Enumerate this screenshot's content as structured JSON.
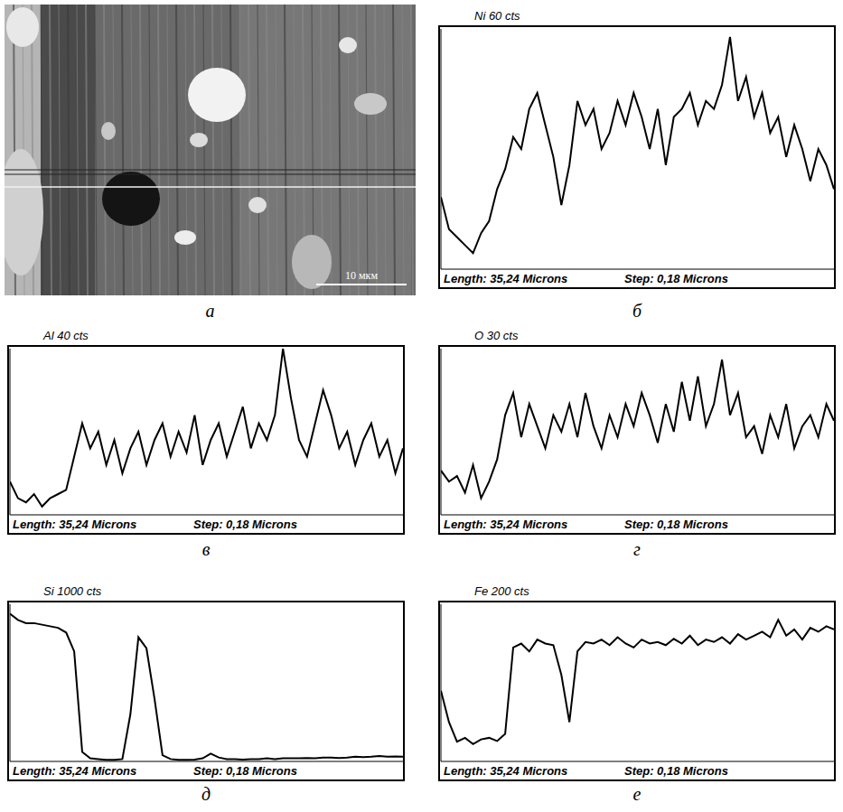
{
  "image": {
    "panel": "а",
    "scale_bar": "10 мкм"
  },
  "chart_data": [
    {
      "type": "line",
      "panel": "б",
      "title": "Ni 60 cts",
      "annotations": [
        "Length: 35,24 Microns",
        "Step: 0,18 Microns"
      ],
      "color": "#000000",
      "tick_labels": false,
      "xlim": [
        0,
        35.24
      ],
      "ylim": [
        0,
        60
      ],
      "x": [
        0,
        0.72,
        1.44,
        2.16,
        2.88,
        3.6,
        4.32,
        5.04,
        5.76,
        6.48,
        7.2,
        7.92,
        8.64,
        9.36,
        10.08,
        10.8,
        11.52,
        12.24,
        12.96,
        13.68,
        14.4,
        15.12,
        15.84,
        16.56,
        17.28,
        18,
        18.72,
        19.44,
        20.16,
        20.88,
        21.6,
        22.32,
        23.04,
        23.76,
        24.48,
        25.2,
        25.92,
        26.64,
        27.36,
        28.08,
        28.8,
        29.52,
        30.24,
        30.96,
        31.68,
        32.4,
        33.12,
        33.84,
        34.56,
        35.24
      ],
      "values": [
        18,
        10,
        8,
        6,
        4,
        9,
        12,
        20,
        25,
        33,
        30,
        40,
        44,
        36,
        28,
        16,
        26,
        42,
        36,
        40,
        30,
        34,
        42,
        36,
        44,
        38,
        30,
        40,
        26,
        38,
        40,
        44,
        36,
        42,
        40,
        46,
        58,
        42,
        48,
        38,
        44,
        34,
        38,
        28,
        36,
        30,
        22,
        30,
        26,
        20
      ]
    },
    {
      "type": "line",
      "panel": "в",
      "title": "Al 40 cts",
      "annotations": [
        "Length: 35,24 Microns",
        "Step: 0,18 Microns"
      ],
      "color": "#000000",
      "tick_labels": false,
      "xlim": [
        0,
        35.24
      ],
      "ylim": [
        0,
        40
      ],
      "x": [
        0,
        0.72,
        1.44,
        2.16,
        2.88,
        3.6,
        4.32,
        5.04,
        5.76,
        6.48,
        7.2,
        7.92,
        8.64,
        9.36,
        10.08,
        10.8,
        11.52,
        12.24,
        12.96,
        13.68,
        14.4,
        15.12,
        15.84,
        16.56,
        17.28,
        18,
        18.72,
        19.44,
        20.16,
        20.88,
        21.6,
        22.32,
        23.04,
        23.76,
        24.48,
        25.2,
        25.92,
        26.64,
        27.36,
        28.08,
        28.8,
        29.52,
        30.24,
        30.96,
        31.68,
        32.4,
        33.12,
        33.84,
        34.56,
        35.24
      ],
      "values": [
        8,
        4,
        3,
        5,
        2,
        4,
        5,
        6,
        14,
        22,
        16,
        20,
        12,
        18,
        10,
        16,
        20,
        12,
        18,
        22,
        14,
        20,
        15,
        24,
        12,
        18,
        22,
        14,
        20,
        26,
        16,
        22,
        18,
        24,
        40,
        28,
        18,
        14,
        22,
        30,
        24,
        16,
        20,
        12,
        18,
        22,
        14,
        18,
        10,
        16
      ]
    },
    {
      "type": "line",
      "panel": "г",
      "title": "O 30 cts",
      "annotations": [
        "Length: 35,24 Microns",
        "Step: 0,18 Microns"
      ],
      "color": "#000000",
      "tick_labels": false,
      "xlim": [
        0,
        35.24
      ],
      "ylim": [
        0,
        30
      ],
      "x": [
        0,
        0.72,
        1.44,
        2.16,
        2.88,
        3.6,
        4.32,
        5.04,
        5.76,
        6.48,
        7.2,
        7.92,
        8.64,
        9.36,
        10.08,
        10.8,
        11.52,
        12.24,
        12.96,
        13.68,
        14.4,
        15.12,
        15.84,
        16.56,
        17.28,
        18,
        18.72,
        19.44,
        20.16,
        20.88,
        21.6,
        22.32,
        23.04,
        23.76,
        24.48,
        25.2,
        25.92,
        26.64,
        27.36,
        28.08,
        28.8,
        29.52,
        30.24,
        30.96,
        31.68,
        32.4,
        33.12,
        33.84,
        34.56,
        35.24
      ],
      "values": [
        8,
        6,
        7,
        4,
        9,
        3,
        6,
        10,
        18,
        22,
        14,
        20,
        16,
        12,
        18,
        15,
        20,
        14,
        22,
        16,
        12,
        18,
        14,
        20,
        16,
        22,
        18,
        13,
        20,
        15,
        24,
        17,
        25,
        16,
        20,
        28,
        18,
        22,
        14,
        16,
        11,
        18,
        14,
        20,
        12,
        16,
        18,
        14,
        20,
        17
      ]
    },
    {
      "type": "line",
      "panel": "д",
      "title": "Si 1000 cts",
      "annotations": [
        "Length: 35,24 Microns",
        "Step: 0,18 Microns"
      ],
      "color": "#000000",
      "tick_labels": false,
      "xlim": [
        0,
        35.24
      ],
      "ylim": [
        0,
        1000
      ],
      "x": [
        0,
        0.72,
        1.44,
        2.16,
        2.88,
        3.6,
        4.32,
        5.04,
        5.76,
        6.48,
        7.2,
        7.92,
        8.64,
        9.36,
        10.08,
        10.8,
        11.52,
        12.24,
        12.96,
        13.68,
        14.4,
        15.12,
        15.84,
        16.56,
        17.28,
        18,
        18.72,
        19.44,
        20.16,
        20.88,
        21.6,
        22.32,
        23.04,
        23.76,
        24.48,
        25.2,
        25.92,
        26.64,
        27.36,
        28.08,
        28.8,
        29.52,
        30.24,
        30.96,
        31.68,
        32.4,
        33.12,
        33.84,
        34.56,
        35.24
      ],
      "values": [
        940,
        900,
        880,
        880,
        870,
        860,
        850,
        820,
        700,
        60,
        20,
        15,
        10,
        10,
        15,
        300,
        790,
        720,
        400,
        40,
        15,
        10,
        10,
        12,
        20,
        50,
        25,
        15,
        15,
        12,
        15,
        15,
        20,
        15,
        20,
        20,
        20,
        22,
        20,
        25,
        25,
        22,
        25,
        30,
        28,
        30,
        35,
        30,
        32,
        30
      ]
    },
    {
      "type": "line",
      "panel": "е",
      "title": "Fe 200 cts",
      "annotations": [
        "Length: 35,24 Microns",
        "Step: 0,18 Microns"
      ],
      "color": "#000000",
      "tick_labels": false,
      "xlim": [
        0,
        35.24
      ],
      "ylim": [
        0,
        200
      ],
      "x": [
        0,
        0.72,
        1.44,
        2.16,
        2.88,
        3.6,
        4.32,
        5.04,
        5.76,
        6.48,
        7.2,
        7.92,
        8.64,
        9.36,
        10.08,
        10.8,
        11.52,
        12.24,
        12.96,
        13.68,
        14.4,
        15.12,
        15.84,
        16.56,
        17.28,
        18,
        18.72,
        19.44,
        20.16,
        20.88,
        21.6,
        22.32,
        23.04,
        23.76,
        24.48,
        25.2,
        25.92,
        26.64,
        27.36,
        28.08,
        28.8,
        29.52,
        30.24,
        30.96,
        31.68,
        32.4,
        33.12,
        33.84,
        34.56,
        35.24
      ],
      "values": [
        90,
        50,
        25,
        30,
        22,
        28,
        30,
        26,
        35,
        145,
        150,
        140,
        155,
        150,
        148,
        110,
        50,
        140,
        152,
        150,
        155,
        148,
        158,
        150,
        145,
        155,
        150,
        152,
        148,
        156,
        150,
        160,
        148,
        155,
        152,
        158,
        150,
        162,
        155,
        160,
        165,
        158,
        180,
        160,
        168,
        155,
        170,
        165,
        172,
        168
      ]
    }
  ]
}
